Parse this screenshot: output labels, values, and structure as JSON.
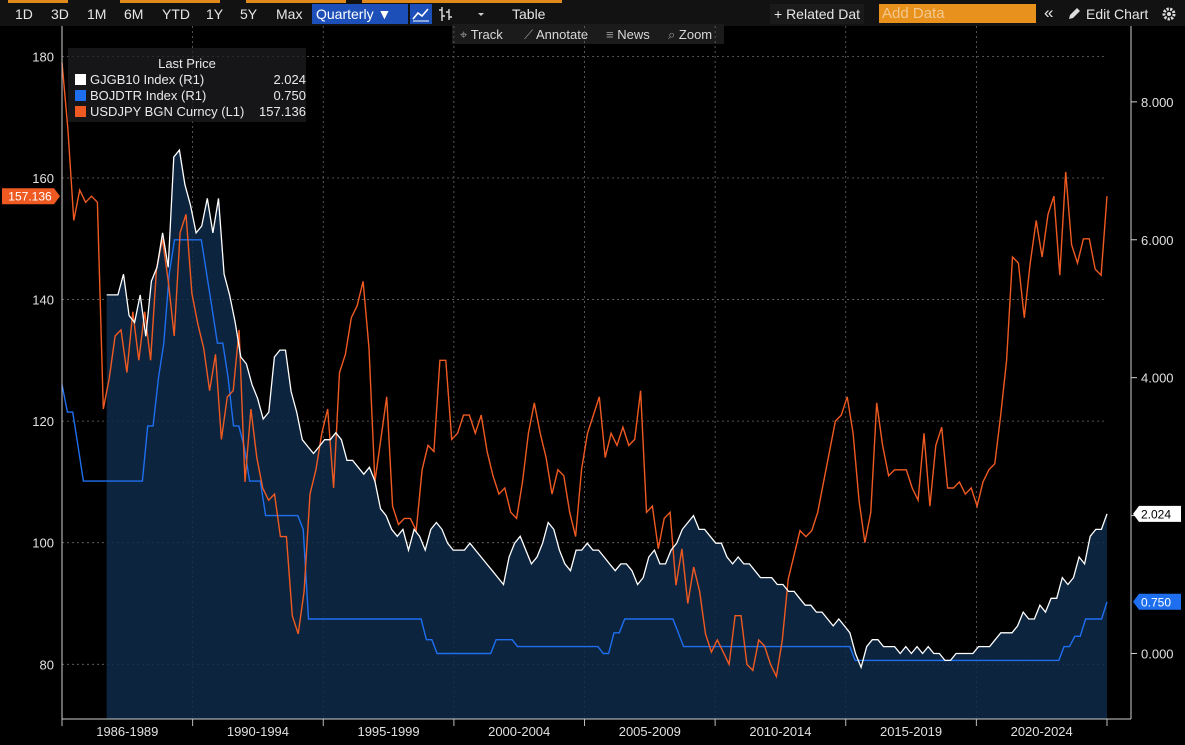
{
  "toolbar": {
    "ranges": [
      "1D",
      "3D",
      "1M",
      "6M",
      "YTD",
      "1Y",
      "5Y",
      "Max"
    ],
    "frequency": "Quarterly ▼",
    "table_label": "Table",
    "related_data_label": "+ Related Dat",
    "add_data_placeholder": "Add Data",
    "collapse_symbol": "«",
    "edit_chart_label": "Edit Chart",
    "subtools": [
      "Track",
      "Annotate",
      "News",
      "Zoom"
    ]
  },
  "legend": {
    "title": "Last Price",
    "items": [
      {
        "name": "GJGB10 Index  (R1)",
        "value": "2.024",
        "color": "#ffffff"
      },
      {
        "name": "BOJDTR Index  (R1)",
        "value": "0.750",
        "color": "#1e6ff0"
      },
      {
        "name": "USDJPY BGN Curncy  (L1)",
        "value": "157.136",
        "color": "#ef5a22"
      }
    ]
  },
  "chart_data": {
    "type": "line",
    "title": "",
    "x_labels": [
      "1986-1989",
      "1990-1994",
      "1995-1999",
      "2000-2004",
      "2005-2009",
      "2010-2014",
      "2015-2019",
      "2020-2024"
    ],
    "left_axis": {
      "ticks": [
        "80",
        "100",
        "120",
        "140",
        "160",
        "180"
      ],
      "range": [
        71,
        185
      ]
    },
    "right_axis": {
      "ticks": [
        "0.000",
        "2.000",
        "4.000",
        "6.000",
        "8.000"
      ],
      "range": [
        -0.95,
        9.1
      ]
    },
    "last_value_badges": {
      "USDJPY": "157.136",
      "GJGB10": "2.024",
      "BOJDTR": "0.750"
    },
    "series": [
      {
        "name": "USDJPY BGN Curncy",
        "axis": "left",
        "color": "#ef5a22",
        "values": [
          179,
          168,
          153,
          158,
          156,
          157,
          156,
          122,
          127,
          134,
          135,
          128,
          138,
          130,
          138,
          130,
          145,
          150,
          143,
          134,
          151,
          154,
          141,
          136,
          132,
          125,
          131,
          117,
          124,
          125,
          135,
          110,
          122,
          114,
          109,
          107,
          108,
          101,
          101,
          88,
          85,
          92,
          108,
          112,
          118,
          122,
          109,
          128,
          131,
          137,
          139,
          143,
          132,
          110,
          117,
          124,
          106,
          103,
          104,
          104,
          102,
          112,
          116,
          115,
          130,
          130,
          117,
          118,
          121,
          121,
          118,
          121,
          115,
          111,
          108,
          109,
          105,
          104,
          110,
          118,
          123,
          118,
          114,
          108,
          112,
          111,
          105,
          101,
          112,
          118,
          121,
          124,
          114,
          118,
          116,
          119,
          116,
          117,
          125,
          105,
          106,
          99,
          104,
          105,
          93,
          99,
          90,
          96,
          92,
          85,
          82,
          84,
          82,
          80,
          88,
          88,
          80,
          79,
          84,
          83,
          80,
          78,
          84,
          94,
          98,
          102,
          101,
          102,
          105,
          110,
          115,
          120,
          121,
          124,
          118,
          107,
          100,
          105,
          123,
          116,
          111,
          112,
          112,
          112,
          109,
          107,
          118,
          106,
          116,
          119,
          109,
          109,
          110,
          108,
          109,
          106,
          110,
          112,
          113,
          121,
          130,
          147,
          146,
          137,
          146,
          153,
          147,
          154,
          157,
          144,
          161,
          149,
          146,
          150,
          150,
          145,
          144,
          157
        ]
      },
      {
        "name": "GJGB10 Index",
        "axis": "right",
        "color": "#ffffff",
        "values": [
          null,
          null,
          null,
          null,
          null,
          null,
          null,
          null,
          5.2,
          5.2,
          5.2,
          5.5,
          4.9,
          4.8,
          5.2,
          4.6,
          5.4,
          5.6,
          6.1,
          5.6,
          7.2,
          7.3,
          6.8,
          6.5,
          6.1,
          6.2,
          6.6,
          6.1,
          6.6,
          5.5,
          5.2,
          4.8,
          4.3,
          4.2,
          3.9,
          3.7,
          3.4,
          3.5,
          4.3,
          4.4,
          4.4,
          3.8,
          3.5,
          3.1,
          3.0,
          2.9,
          3.0,
          3.1,
          3.1,
          3.2,
          3.1,
          2.8,
          2.8,
          2.7,
          2.6,
          2.7,
          2.5,
          2.1,
          2.0,
          1.8,
          1.7,
          1.8,
          1.5,
          1.8,
          1.7,
          1.5,
          1.8,
          1.9,
          1.8,
          1.6,
          1.5,
          1.5,
          1.5,
          1.6,
          1.5,
          1.4,
          1.3,
          1.2,
          1.1,
          1.0,
          1.4,
          1.6,
          1.7,
          1.5,
          1.3,
          1.4,
          1.6,
          1.9,
          1.8,
          1.5,
          1.3,
          1.2,
          1.5,
          1.5,
          1.6,
          1.5,
          1.5,
          1.4,
          1.3,
          1.2,
          1.3,
          1.3,
          1.2,
          1.0,
          1.1,
          1.4,
          1.5,
          1.3,
          1.3,
          1.5,
          1.6,
          1.8,
          1.9,
          2.0,
          1.8,
          1.8,
          1.7,
          1.6,
          1.6,
          1.4,
          1.3,
          1.4,
          1.3,
          1.3,
          1.2,
          1.1,
          1.1,
          1.1,
          1.0,
          1.0,
          0.9,
          0.9,
          0.8,
          0.7,
          0.7,
          0.6,
          0.6,
          0.5,
          0.4,
          0.5,
          0.4,
          0.3,
          0.0,
          -0.2,
          0.1,
          0.2,
          0.2,
          0.1,
          0.1,
          0.1,
          0.0,
          0.1,
          0.0,
          0.1,
          0.0,
          0.1,
          0.0,
          0.0,
          -0.1,
          -0.1,
          0.0,
          0.0,
          0.0,
          0.0,
          0.1,
          0.1,
          0.1,
          0.2,
          0.3,
          0.3,
          0.3,
          0.4,
          0.6,
          0.5,
          0.5,
          0.7,
          0.6,
          0.8,
          0.8,
          1.1,
          1.0,
          1.1,
          1.4,
          1.3,
          1.7,
          1.8,
          1.8,
          2.024
        ]
      },
      {
        "name": "BOJDTR Index",
        "axis": "right",
        "color": "#1e6ff0",
        "values": [
          3.9,
          3.5,
          3.5,
          3.0,
          2.5,
          2.5,
          2.5,
          2.5,
          2.5,
          2.5,
          2.5,
          2.5,
          2.5,
          2.5,
          2.5,
          2.5,
          3.3,
          3.3,
          4.0,
          4.5,
          5.5,
          6.0,
          6.0,
          6.0,
          6.0,
          6.0,
          6.0,
          5.5,
          5.0,
          4.5,
          4.5,
          4.0,
          3.3,
          3.3,
          3.0,
          2.5,
          2.5,
          2.5,
          2.0,
          2.0,
          2.0,
          2.0,
          2.0,
          2.0,
          2.0,
          1.8,
          0.5,
          0.5,
          0.5,
          0.5,
          0.5,
          0.5,
          0.5,
          0.5,
          0.5,
          0.5,
          0.5,
          0.5,
          0.5,
          0.5,
          0.5,
          0.5,
          0.5,
          0.5,
          0.5,
          0.5,
          0.5,
          0.5,
          0.2,
          0.2,
          0.0,
          0.0,
          0.0,
          0.0,
          0.0,
          0.0,
          0.0,
          0.0,
          0.0,
          0.0,
          0.0,
          0.2,
          0.2,
          0.2,
          0.2,
          0.1,
          0.1,
          0.1,
          0.1,
          0.1,
          0.1,
          0.1,
          0.1,
          0.1,
          0.1,
          0.1,
          0.1,
          0.1,
          0.1,
          0.1,
          0.1,
          0.0,
          0.0,
          0.3,
          0.3,
          0.5,
          0.5,
          0.5,
          0.5,
          0.5,
          0.5,
          0.5,
          0.5,
          0.5,
          0.5,
          0.3,
          0.1,
          0.1,
          0.1,
          0.1,
          0.1,
          0.1,
          0.1,
          0.1,
          0.1,
          0.1,
          0.1,
          0.1,
          0.1,
          0.1,
          0.1,
          0.1,
          0.1,
          0.1,
          0.1,
          0.1,
          0.1,
          0.1,
          0.1,
          0.1,
          0.1,
          0.1,
          0.1,
          0.1,
          0.1,
          0.1,
          0.1,
          0.1,
          -0.1,
          -0.1,
          -0.1,
          -0.1,
          -0.1,
          -0.1,
          -0.1,
          -0.1,
          -0.1,
          -0.1,
          -0.1,
          -0.1,
          -0.1,
          -0.1,
          -0.1,
          -0.1,
          -0.1,
          -0.1,
          -0.1,
          -0.1,
          -0.1,
          -0.1,
          -0.1,
          -0.1,
          -0.1,
          -0.1,
          -0.1,
          -0.1,
          -0.1,
          -0.1,
          -0.1,
          -0.1,
          -0.1,
          -0.1,
          -0.1,
          -0.1,
          -0.1,
          -0.1,
          -0.1,
          0.1,
          0.1,
          0.25,
          0.25,
          0.5,
          0.5,
          0.5,
          0.5,
          0.75
        ]
      }
    ]
  }
}
